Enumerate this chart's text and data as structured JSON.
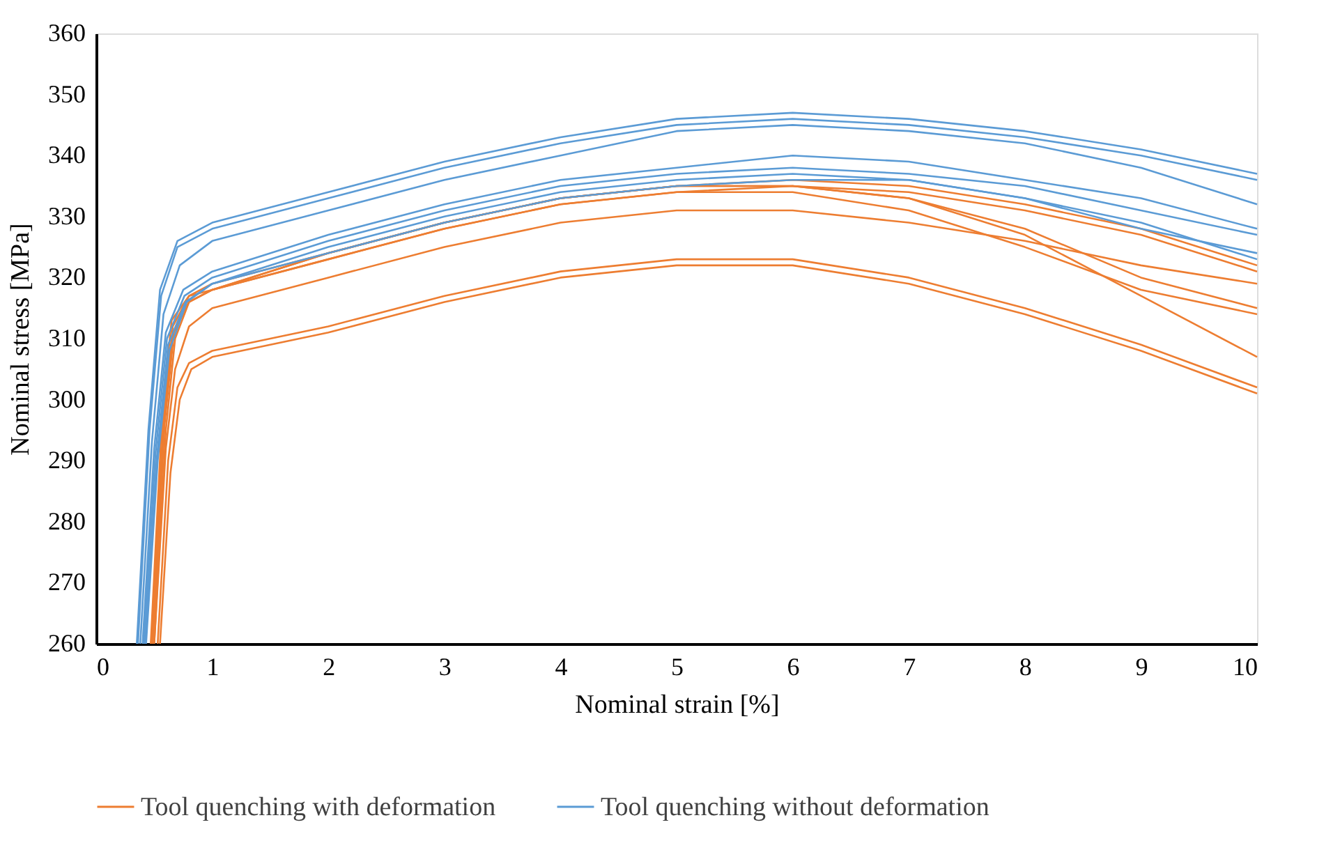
{
  "chart_data": {
    "type": "line",
    "xlabel": "Nominal strain [%]",
    "ylabel": "Nominal stress [MPa]",
    "xlim": [
      0,
      10
    ],
    "ylim": [
      260,
      360
    ],
    "xticks": [
      0,
      1,
      2,
      3,
      4,
      5,
      6,
      7,
      8,
      9,
      10
    ],
    "yticks": [
      260,
      270,
      280,
      290,
      300,
      310,
      320,
      330,
      340,
      350,
      360
    ],
    "grid": false,
    "legend": "bottom",
    "marker": "none",
    "line_style": "solid",
    "series": [
      {
        "name": "Tool quenching with deformation",
        "color": "#ed7d31",
        "x": [
          0.53,
          0.62,
          0.7,
          0.8,
          1,
          2,
          3,
          4,
          5,
          6,
          7,
          8,
          9,
          10
        ],
        "values": [
          260,
          290,
          302,
          306,
          308,
          312,
          317,
          321,
          323,
          323,
          320,
          315,
          309,
          302
        ]
      },
      {
        "color": "#ed7d31",
        "x": [
          0.55,
          0.64,
          0.72,
          0.82,
          1,
          2,
          3,
          4,
          5,
          6,
          7,
          8,
          9,
          10
        ],
        "values": [
          260,
          288,
          300,
          305,
          307,
          311,
          316,
          320,
          322,
          322,
          319,
          314,
          308,
          301
        ]
      },
      {
        "color": "#ed7d31",
        "x": [
          0.5,
          0.6,
          0.68,
          0.8,
          1,
          2,
          3,
          4,
          5,
          6,
          7,
          8,
          9,
          10
        ],
        "values": [
          260,
          292,
          305,
          312,
          315,
          320,
          325,
          329,
          331,
          331,
          329,
          326,
          322,
          319
        ]
      },
      {
        "color": "#ed7d31",
        "x": [
          0.5,
          0.6,
          0.68,
          0.8,
          1,
          2,
          3,
          4,
          5,
          6,
          7,
          8,
          9,
          10
        ],
        "values": [
          260,
          295,
          310,
          316,
          318,
          323,
          328,
          332,
          334,
          334,
          331,
          325,
          318,
          314
        ]
      },
      {
        "color": "#ed7d31",
        "x": [
          0.48,
          0.58,
          0.66,
          0.8,
          1,
          2,
          3,
          4,
          5,
          6,
          7,
          8,
          9,
          10
        ],
        "values": [
          260,
          296,
          311,
          316,
          318,
          324,
          329,
          333,
          335,
          335,
          333,
          327,
          317,
          307
        ]
      },
      {
        "color": "#ed7d31",
        "x": [
          0.48,
          0.58,
          0.66,
          0.8,
          1,
          2,
          3,
          4,
          5,
          6,
          7,
          8,
          9,
          10
        ],
        "values": [
          260,
          297,
          312,
          317,
          318,
          324,
          329,
          333,
          335,
          335,
          334,
          331,
          327,
          321
        ]
      },
      {
        "color": "#ed7d31",
        "x": [
          0.47,
          0.57,
          0.65,
          0.8,
          1,
          2,
          3,
          4,
          5,
          6,
          7,
          8,
          9,
          10
        ],
        "values": [
          260,
          298,
          313,
          317,
          319,
          324,
          329,
          333,
          335,
          336,
          335,
          332,
          328,
          322
        ]
      },
      {
        "color": "#ed7d31",
        "x": [
          0.49,
          0.59,
          0.67,
          0.8,
          1,
          2,
          3,
          4,
          5,
          6,
          7,
          8,
          9,
          10
        ],
        "values": [
          260,
          296,
          311,
          316,
          318,
          323,
          328,
          332,
          334,
          335,
          333,
          328,
          320,
          315
        ]
      },
      {
        "name": "Tool quenching without deformation",
        "color": "#5b9bd5",
        "x": [
          0.35,
          0.45,
          0.55,
          0.7,
          1,
          2,
          3,
          4,
          5,
          6,
          7,
          8,
          9,
          10
        ],
        "values": [
          260,
          295,
          318,
          326,
          329,
          334,
          339,
          343,
          346,
          347,
          346,
          344,
          341,
          337
        ]
      },
      {
        "color": "#5b9bd5",
        "x": [
          0.36,
          0.46,
          0.56,
          0.7,
          1,
          2,
          3,
          4,
          5,
          6,
          7,
          8,
          9,
          10
        ],
        "values": [
          260,
          295,
          317,
          325,
          328,
          333,
          338,
          342,
          345,
          346,
          345,
          343,
          340,
          336
        ]
      },
      {
        "color": "#5b9bd5",
        "x": [
          0.38,
          0.48,
          0.58,
          0.72,
          1,
          2,
          3,
          4,
          5,
          6,
          7,
          8,
          9,
          10
        ],
        "values": [
          260,
          293,
          314,
          322,
          326,
          331,
          336,
          340,
          344,
          345,
          344,
          342,
          338,
          332
        ]
      },
      {
        "color": "#5b9bd5",
        "x": [
          0.4,
          0.5,
          0.6,
          0.75,
          1,
          2,
          3,
          4,
          5,
          6,
          7,
          8,
          9,
          10
        ],
        "values": [
          260,
          292,
          311,
          318,
          321,
          327,
          332,
          336,
          338,
          340,
          339,
          336,
          333,
          328
        ]
      },
      {
        "color": "#5b9bd5",
        "x": [
          0.41,
          0.51,
          0.61,
          0.76,
          1,
          2,
          3,
          4,
          5,
          6,
          7,
          8,
          9,
          10
        ],
        "values": [
          260,
          291,
          310,
          317,
          320,
          326,
          331,
          335,
          337,
          338,
          337,
          335,
          331,
          327
        ]
      },
      {
        "color": "#5b9bd5",
        "x": [
          0.42,
          0.52,
          0.62,
          0.77,
          1,
          2,
          3,
          4,
          5,
          6,
          7,
          8,
          9,
          10
        ],
        "values": [
          260,
          290,
          309,
          316,
          319,
          325,
          330,
          334,
          336,
          337,
          336,
          333,
          328,
          324
        ]
      },
      {
        "color": "#5b9bd5",
        "x": [
          0.43,
          0.53,
          0.63,
          0.78,
          1,
          2,
          3,
          4,
          5,
          6,
          7,
          8,
          9,
          10
        ],
        "values": [
          260,
          290,
          308,
          316,
          319,
          324,
          329,
          333,
          335,
          336,
          336,
          333,
          329,
          323
        ]
      }
    ]
  }
}
